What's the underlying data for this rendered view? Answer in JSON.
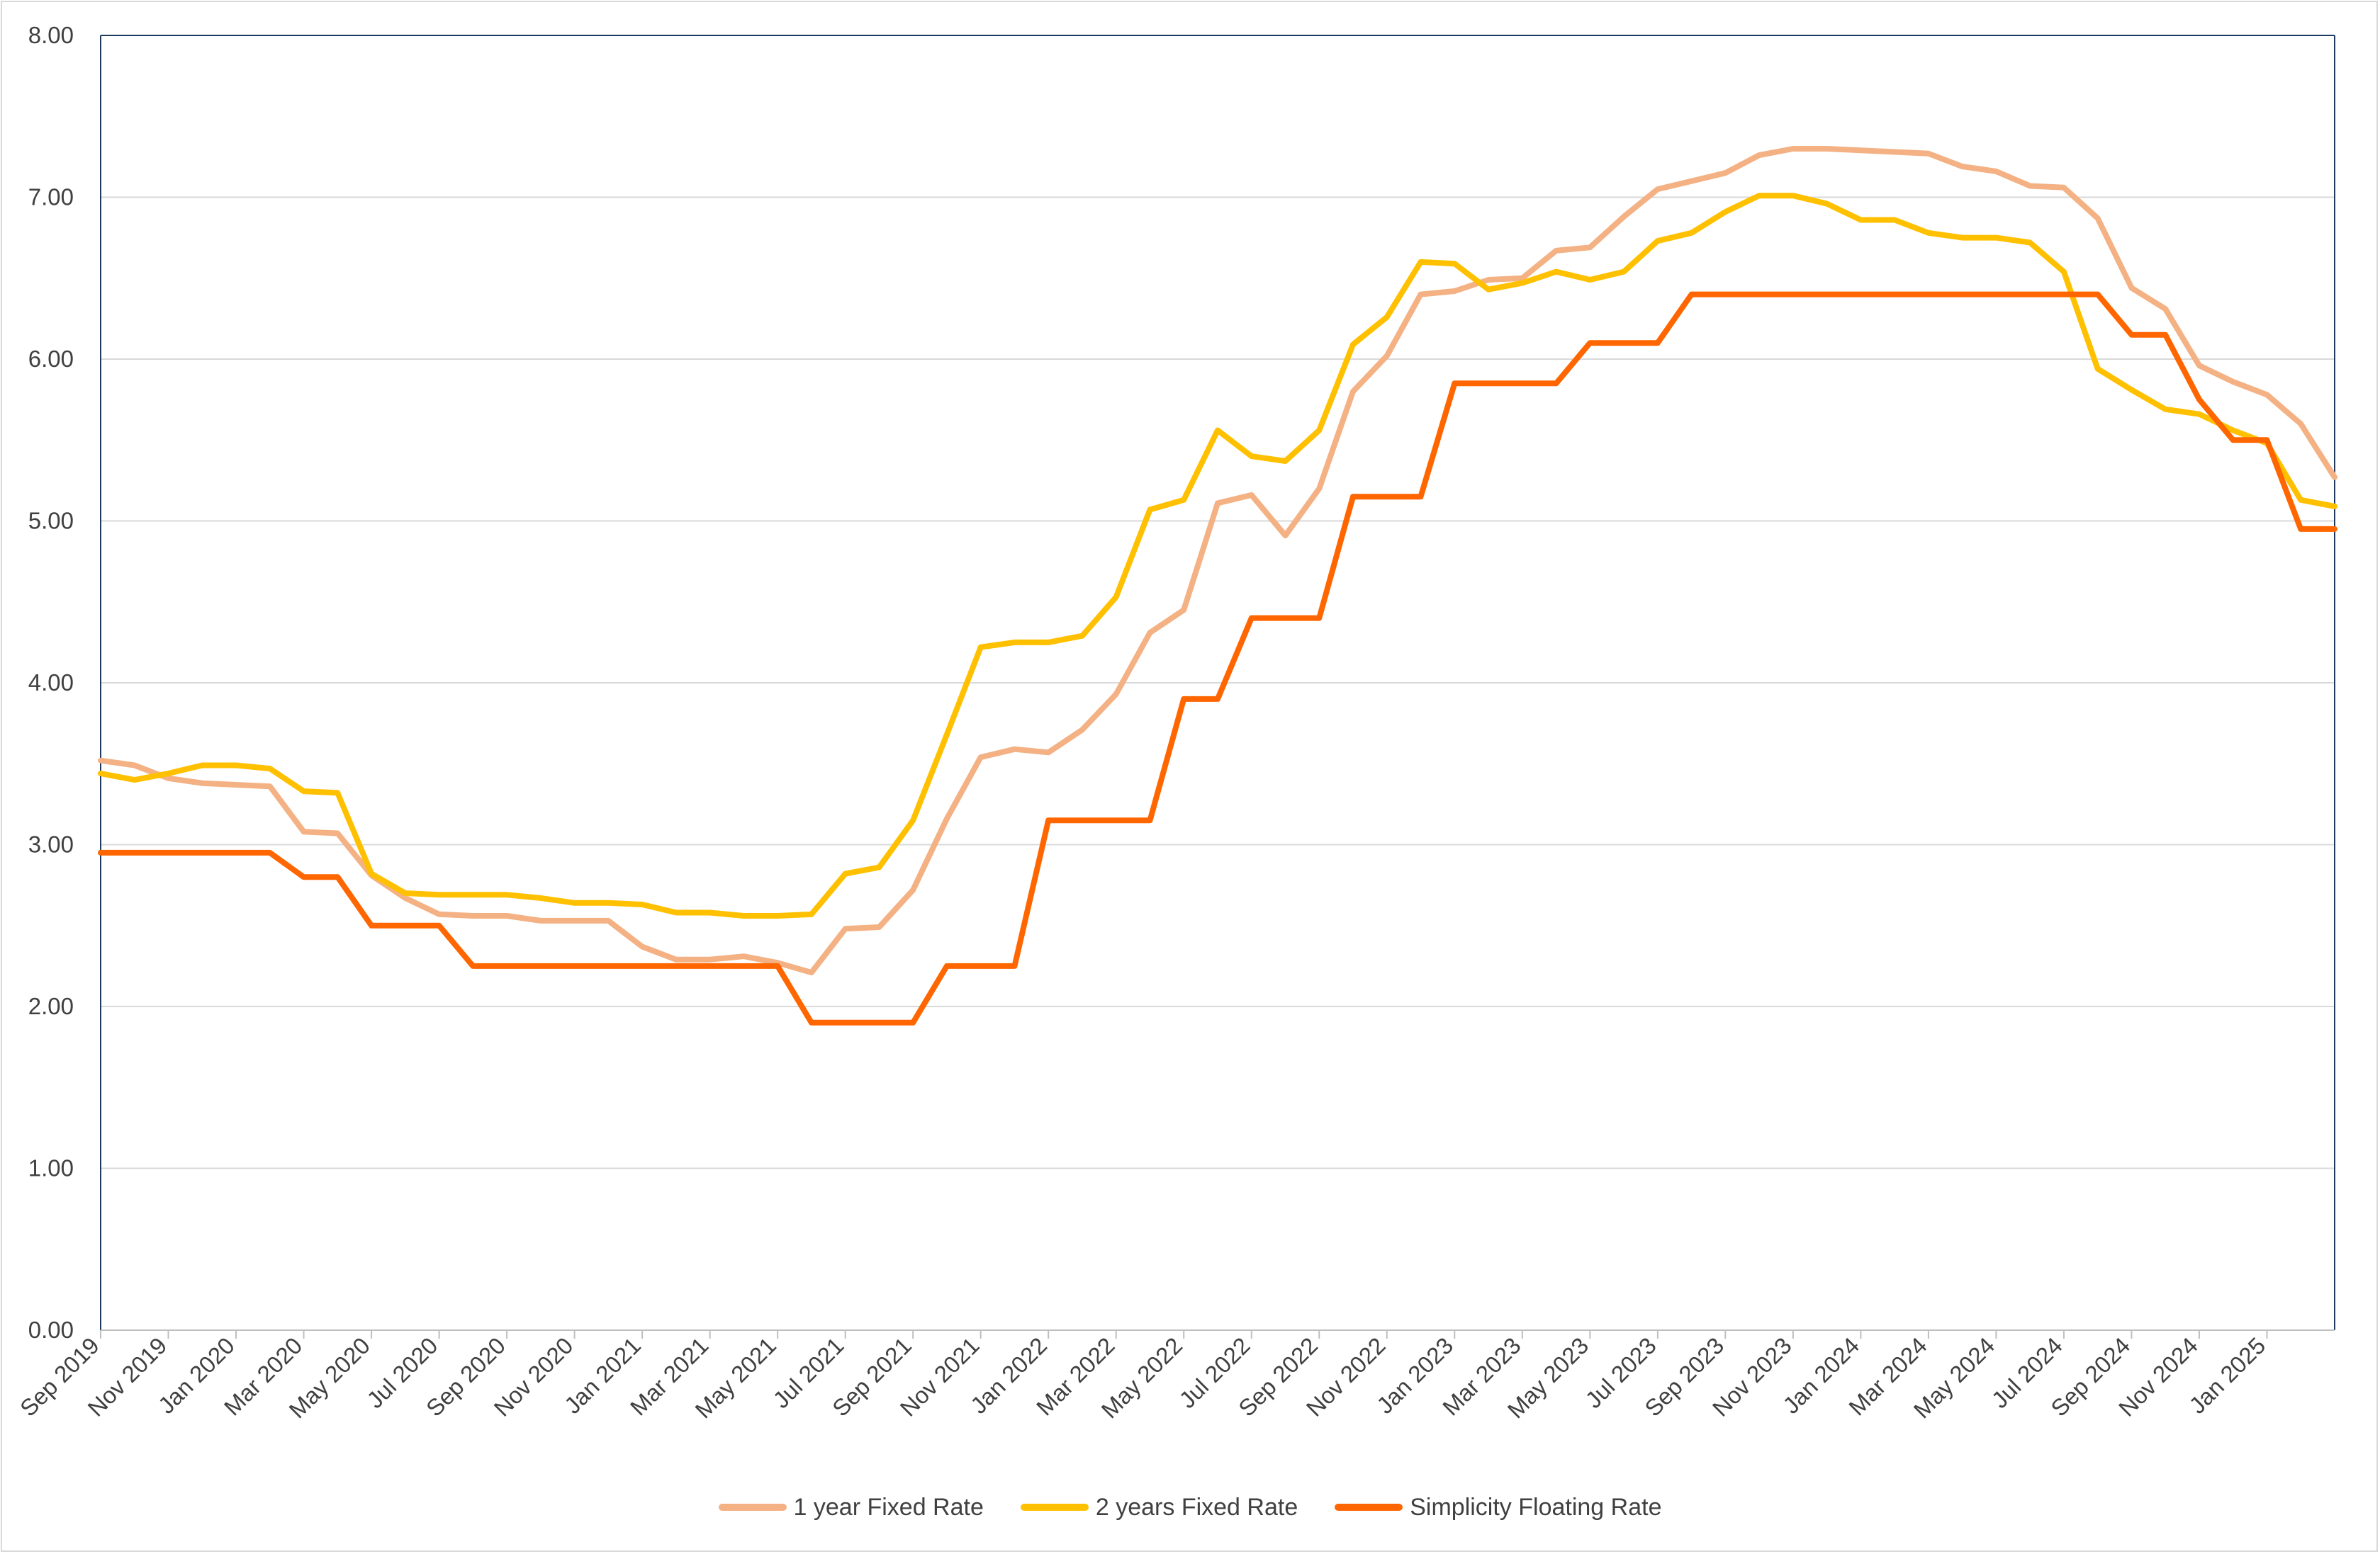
{
  "chart_data": {
    "type": "line",
    "title": "",
    "xlabel": "",
    "ylabel": "",
    "ylim": [
      0,
      8
    ],
    "yticks": [
      "0.00",
      "1.00",
      "2.00",
      "3.00",
      "4.00",
      "5.00",
      "6.00",
      "7.00",
      "8.00"
    ],
    "grid": "horizontal",
    "legend_position": "bottom",
    "x": [
      "Sep 2019",
      "Oct 2019",
      "Nov 2019",
      "Dec 2019",
      "Jan 2020",
      "Feb 2020",
      "Mar 2020",
      "Apr 2020",
      "May 2020",
      "Jun 2020",
      "Jul 2020",
      "Aug 2020",
      "Sep 2020",
      "Oct 2020",
      "Nov 2020",
      "Dec 2020",
      "Jan 2021",
      "Feb 2021",
      "Mar 2021",
      "Apr 2021",
      "May 2021",
      "Jun 2021",
      "Jul 2021",
      "Aug 2021",
      "Sep 2021",
      "Oct 2021",
      "Nov 2021",
      "Dec 2021",
      "Jan 2022",
      "Feb 2022",
      "Mar 2022",
      "Apr 2022",
      "May 2022",
      "Jun 2022",
      "Jul 2022",
      "Aug 2022",
      "Sep 2022",
      "Oct 2022",
      "Nov 2022",
      "Dec 2022",
      "Jan 2023",
      "Feb 2023",
      "Mar 2023",
      "Apr 2023",
      "May 2023",
      "Jun 2023",
      "Jul 2023",
      "Aug 2023",
      "Sep 2023",
      "Oct 2023",
      "Nov 2023",
      "Dec 2023",
      "Jan 2024",
      "Feb 2024",
      "Mar 2024",
      "Apr 2024",
      "May 2024",
      "Jun 2024",
      "Jul 2024",
      "Aug 2024",
      "Sep 2024",
      "Oct 2024",
      "Nov 2024",
      "Dec 2024",
      "Jan 2025",
      "Feb 2025",
      "Mar 2025"
    ],
    "x_tick_labels": [
      "Sep 2019",
      "Nov 2019",
      "Jan 2020",
      "Mar 2020",
      "May 2020",
      "Jul 2020",
      "Sep 2020",
      "Nov 2020",
      "Jan 2021",
      "Mar 2021",
      "May 2021",
      "Jul 2021",
      "Sep 2021",
      "Nov 2021",
      "Jan 2022",
      "Mar 2022",
      "May 2022",
      "Jul 2022",
      "Sep 2022",
      "Nov 2022",
      "Jan 2023",
      "Mar 2023",
      "May 2023",
      "Jul 2023",
      "Sep 2023",
      "Nov 2023",
      "Jan 2024",
      "Mar 2024",
      "May 2024",
      "Jul 2024",
      "Sep 2024",
      "Nov 2024",
      "Jan 2025"
    ],
    "series": [
      {
        "name": "1 year Fixed Rate",
        "color": "#f4b183",
        "values": [
          3.52,
          3.49,
          3.41,
          3.38,
          3.37,
          3.36,
          3.08,
          3.07,
          2.81,
          2.67,
          2.57,
          2.56,
          2.56,
          2.53,
          2.53,
          2.53,
          2.37,
          2.29,
          2.29,
          2.31,
          2.27,
          2.21,
          2.48,
          2.49,
          2.72,
          3.16,
          3.54,
          3.59,
          3.57,
          3.71,
          3.93,
          4.31,
          4.45,
          5.11,
          5.16,
          4.91,
          5.2,
          5.8,
          6.02,
          6.4,
          6.42,
          6.49,
          6.5,
          6.67,
          6.69,
          6.88,
          7.05,
          7.1,
          7.15,
          7.26,
          7.3,
          7.3,
          7.29,
          7.28,
          7.27,
          7.19,
          7.16,
          7.07,
          7.06,
          6.87,
          6.44,
          6.31,
          5.96,
          5.86,
          5.78,
          5.6,
          5.27
        ]
      },
      {
        "name": "2 years Fixed Rate",
        "color": "#ffc000",
        "values": [
          3.44,
          3.4,
          3.44,
          3.49,
          3.49,
          3.47,
          3.33,
          3.32,
          2.82,
          2.7,
          2.69,
          2.69,
          2.69,
          2.67,
          2.64,
          2.64,
          2.63,
          2.58,
          2.58,
          2.56,
          2.56,
          2.57,
          2.82,
          2.86,
          3.15,
          3.68,
          4.22,
          4.25,
          4.25,
          4.29,
          4.53,
          5.07,
          5.13,
          5.56,
          5.4,
          5.37,
          5.56,
          6.09,
          6.26,
          6.6,
          6.59,
          6.43,
          6.47,
          6.54,
          6.49,
          6.54,
          6.73,
          6.78,
          6.91,
          7.01,
          7.01,
          6.96,
          6.86,
          6.86,
          6.78,
          6.75,
          6.75,
          6.72,
          6.54,
          5.94,
          5.81,
          5.69,
          5.66,
          5.56,
          5.48,
          5.13,
          5.09
        ]
      },
      {
        "name": "Simplicity Floating Rate",
        "color": "#ff6600",
        "values": [
          2.95,
          2.95,
          2.95,
          2.95,
          2.95,
          2.95,
          2.8,
          2.8,
          2.5,
          2.5,
          2.5,
          2.25,
          2.25,
          2.25,
          2.25,
          2.25,
          2.25,
          2.25,
          2.25,
          2.25,
          2.25,
          1.9,
          1.9,
          1.9,
          1.9,
          2.25,
          2.25,
          2.25,
          3.15,
          3.15,
          3.15,
          3.15,
          3.9,
          3.9,
          4.4,
          4.4,
          4.4,
          5.15,
          5.15,
          5.15,
          5.85,
          5.85,
          5.85,
          5.85,
          6.1,
          6.1,
          6.1,
          6.4,
          6.4,
          6.4,
          6.4,
          6.4,
          6.4,
          6.4,
          6.4,
          6.4,
          6.4,
          6.4,
          6.4,
          6.4,
          6.15,
          6.15,
          5.75,
          5.5,
          5.5,
          4.95,
          4.95
        ]
      }
    ]
  }
}
